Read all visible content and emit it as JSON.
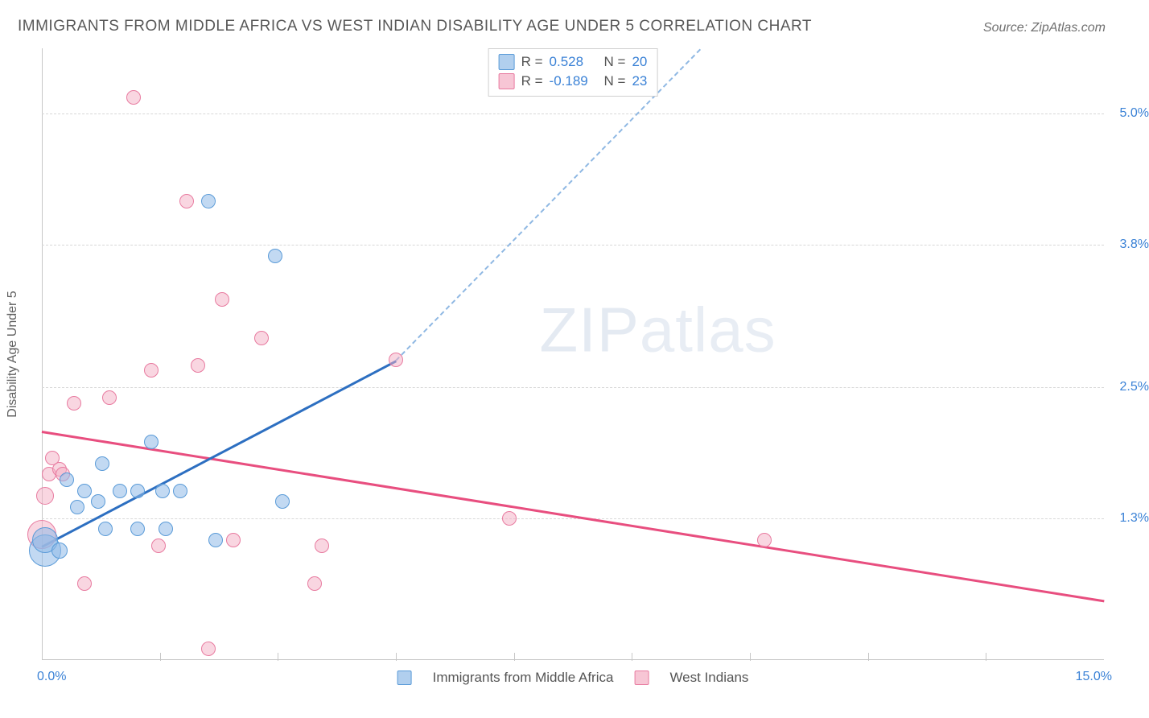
{
  "title": "IMMIGRANTS FROM MIDDLE AFRICA VS WEST INDIAN DISABILITY AGE UNDER 5 CORRELATION CHART",
  "source": "Source: ZipAtlas.com",
  "watermark": {
    "bold": "ZIP",
    "light": "atlas"
  },
  "chart": {
    "type": "scatter",
    "background_color": "#ffffff",
    "grid_color": "#d8d8d8",
    "axis_color": "#c7c7c7",
    "x": {
      "min": 0.0,
      "max": 15.0,
      "min_label": "0.0%",
      "max_label": "15.0%",
      "ticks_at": [
        1.67,
        3.33,
        5.0,
        6.67,
        8.33,
        10.0,
        11.67,
        13.33
      ]
    },
    "y": {
      "min": 0.0,
      "max": 5.6,
      "title": "Disability Age Under 5",
      "gridlines": [
        {
          "v": 1.3,
          "label": "1.3%"
        },
        {
          "v": 2.5,
          "label": "2.5%"
        },
        {
          "v": 3.8,
          "label": "3.8%"
        },
        {
          "v": 5.0,
          "label": "5.0%"
        }
      ]
    },
    "series": [
      {
        "id": "blue",
        "name": "Immigrants from Middle Africa",
        "fill": "rgba(144,186,231,0.55)",
        "stroke": "#5a9bd8",
        "r_value": "0.528",
        "n_value": "20",
        "trend": {
          "color": "#2d6fc1",
          "x1": 0.0,
          "y1": 1.05,
          "x2": 5.0,
          "y2": 2.75,
          "dash_x2": 9.3,
          "dash_y2": 5.6
        },
        "points": [
          {
            "x": 0.05,
            "y": 1.0,
            "r": 20
          },
          {
            "x": 0.05,
            "y": 1.1,
            "r": 16
          },
          {
            "x": 0.25,
            "y": 1.0,
            "r": 10
          },
          {
            "x": 0.35,
            "y": 1.65,
            "r": 9
          },
          {
            "x": 0.5,
            "y": 1.4,
            "r": 9
          },
          {
            "x": 0.6,
            "y": 1.55,
            "r": 9
          },
          {
            "x": 0.8,
            "y": 1.45,
            "r": 9
          },
          {
            "x": 0.85,
            "y": 1.8,
            "r": 9
          },
          {
            "x": 0.9,
            "y": 1.2,
            "r": 9
          },
          {
            "x": 1.1,
            "y": 1.55,
            "r": 9
          },
          {
            "x": 1.35,
            "y": 1.55,
            "r": 9
          },
          {
            "x": 1.35,
            "y": 1.2,
            "r": 9
          },
          {
            "x": 1.55,
            "y": 2.0,
            "r": 9
          },
          {
            "x": 1.7,
            "y": 1.55,
            "r": 9
          },
          {
            "x": 1.75,
            "y": 1.2,
            "r": 9
          },
          {
            "x": 1.95,
            "y": 1.55,
            "r": 9
          },
          {
            "x": 2.45,
            "y": 1.1,
            "r": 9
          },
          {
            "x": 2.35,
            "y": 4.2,
            "r": 9
          },
          {
            "x": 3.3,
            "y": 3.7,
            "r": 9
          },
          {
            "x": 3.4,
            "y": 1.45,
            "r": 9
          }
        ]
      },
      {
        "id": "pink",
        "name": "West Indians",
        "fill": "rgba(244,174,195,0.5)",
        "stroke": "#e87ba0",
        "r_value": "-0.189",
        "n_value": "23",
        "trend": {
          "color": "#e84e7f",
          "x1": 0.0,
          "y1": 2.1,
          "x2": 15.0,
          "y2": 0.55
        },
        "points": [
          {
            "x": 0.0,
            "y": 1.15,
            "r": 18
          },
          {
            "x": 0.05,
            "y": 1.5,
            "r": 11
          },
          {
            "x": 0.1,
            "y": 1.7,
            "r": 9
          },
          {
            "x": 0.15,
            "y": 1.85,
            "r": 9
          },
          {
            "x": 0.25,
            "y": 1.75,
            "r": 9
          },
          {
            "x": 0.3,
            "y": 1.7,
            "r": 9
          },
          {
            "x": 0.45,
            "y": 2.35,
            "r": 9
          },
          {
            "x": 0.6,
            "y": 0.7,
            "r": 9
          },
          {
            "x": 0.95,
            "y": 2.4,
            "r": 9
          },
          {
            "x": 1.3,
            "y": 5.15,
            "r": 9
          },
          {
            "x": 1.55,
            "y": 2.65,
            "r": 9
          },
          {
            "x": 1.65,
            "y": 1.05,
            "r": 9
          },
          {
            "x": 2.05,
            "y": 4.2,
            "r": 9
          },
          {
            "x": 2.2,
            "y": 2.7,
            "r": 9
          },
          {
            "x": 2.35,
            "y": 0.1,
            "r": 9
          },
          {
            "x": 2.55,
            "y": 3.3,
            "r": 9
          },
          {
            "x": 2.7,
            "y": 1.1,
            "r": 9
          },
          {
            "x": 3.1,
            "y": 2.95,
            "r": 9
          },
          {
            "x": 3.85,
            "y": 0.7,
            "r": 9
          },
          {
            "x": 3.95,
            "y": 1.05,
            "r": 9
          },
          {
            "x": 5.0,
            "y": 2.75,
            "r": 9
          },
          {
            "x": 6.6,
            "y": 1.3,
            "r": 9
          },
          {
            "x": 10.2,
            "y": 1.1,
            "r": 9
          }
        ]
      }
    ],
    "legend_top": {
      "r_label": "R =",
      "n_label": "N ="
    },
    "legend_bottom_colors": {
      "blue": "#90bae7",
      "pink": "#f4aec3"
    }
  }
}
